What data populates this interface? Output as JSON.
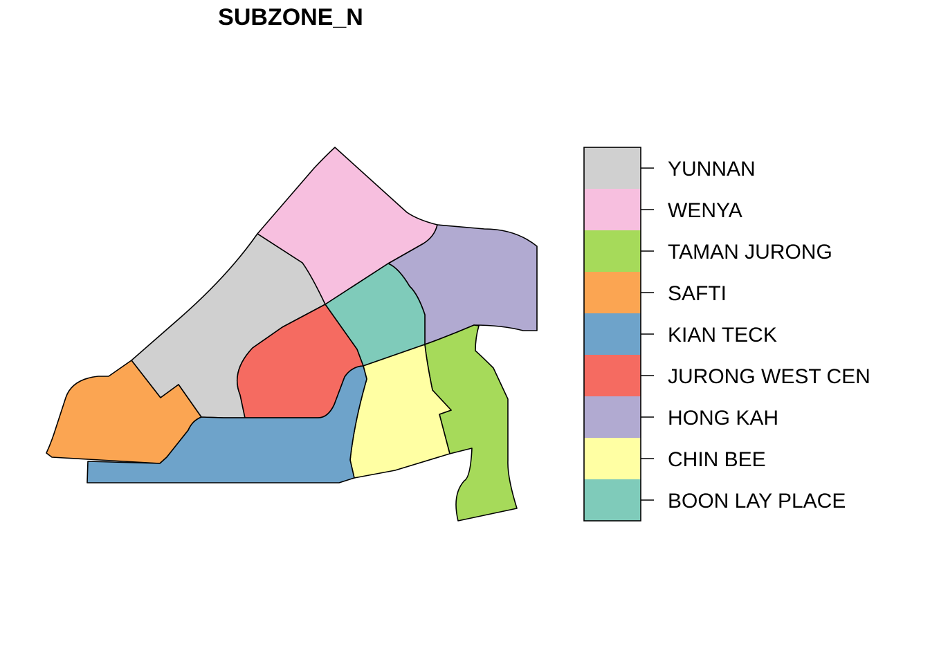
{
  "title": "SUBZONE_N",
  "zones": [
    {
      "id": "yunnan",
      "name": "YUNNAN",
      "color": "#D0D0D0"
    },
    {
      "id": "wenya",
      "name": "WENYA",
      "color": "#F7BFDF"
    },
    {
      "id": "taman-jurong",
      "name": "TAMAN JURONG",
      "color": "#A6DA5A"
    },
    {
      "id": "safti",
      "name": "SAFTI",
      "color": "#FBA552"
    },
    {
      "id": "kian-teck",
      "name": "KIAN TECK",
      "color": "#6EA3CA"
    },
    {
      "id": "jurong-west-cen",
      "name": "JURONG WEST CEN",
      "color": "#F56B61"
    },
    {
      "id": "hong-kah",
      "name": "HONG KAH",
      "color": "#B1AAD1"
    },
    {
      "id": "chin-bee",
      "name": "CHIN BEE",
      "color": "#FFFFA3"
    },
    {
      "id": "boon-lay-place",
      "name": "BOON LAY PLACE",
      "color": "#7FCBBA"
    }
  ],
  "legend": {
    "items": [
      {
        "label": "YUNNAN",
        "color": "#D0D0D0"
      },
      {
        "label": "WENYA",
        "color": "#F7BFDF"
      },
      {
        "label": "TAMAN JURONG",
        "color": "#A6DA5A"
      },
      {
        "label": "SAFTI",
        "color": "#FBA552"
      },
      {
        "label": "KIAN TECK",
        "color": "#6EA3CA"
      },
      {
        "label": "JURONG WEST CEN",
        "color": "#F56B61"
      },
      {
        "label": "HONG KAH",
        "color": "#B1AAD1"
      },
      {
        "label": "CHIN BEE",
        "color": "#FFFFA3"
      },
      {
        "label": "BOON LAY PLACE",
        "color": "#7FCBBA"
      }
    ]
  }
}
